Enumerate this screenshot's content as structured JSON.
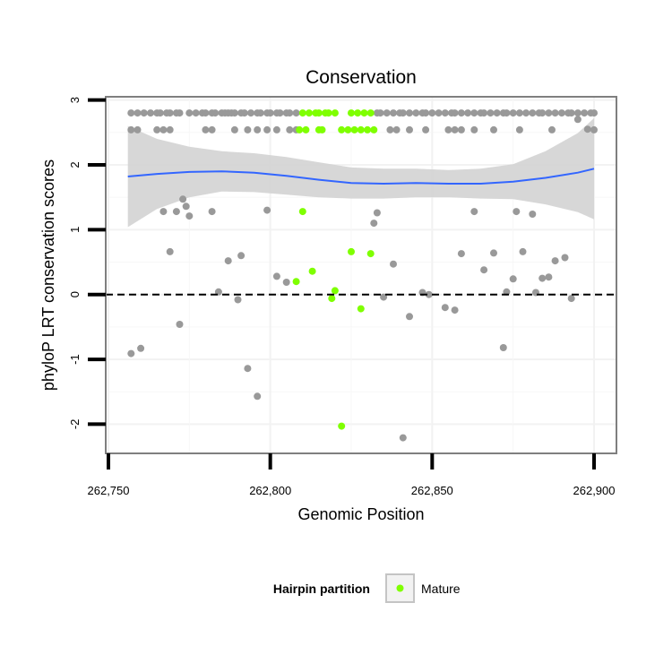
{
  "chart_data": {
    "type": "scatter",
    "title": "Conservation",
    "xlabel": "Genomic Position",
    "ylabel": "phyloP LRT conservation scores",
    "xlim": [
      262750,
      262900
    ],
    "ylim": [
      -2.45,
      3.05
    ],
    "x_ticks": [
      262750,
      262800,
      262850,
      262900
    ],
    "x_tick_labels": [
      "262,750",
      "262,800",
      "262,850",
      "262,900"
    ],
    "y_ticks": [
      -2,
      -1,
      0,
      1,
      2,
      3
    ],
    "y_tick_labels": [
      "-2",
      "-1",
      "0",
      "1",
      "2",
      "3"
    ],
    "reference_line": {
      "y": 0,
      "style": "dashed",
      "color": "#000000"
    },
    "grid": true,
    "legend": {
      "title": "Hairpin partition",
      "position": "bottom",
      "entries": [
        "Mature"
      ]
    },
    "colors": {
      "other": "#999999",
      "mature": "#7fff00",
      "smooth": "#3366ff",
      "band": "#d3d3d3",
      "panel_border": "#7f7f7f"
    },
    "series": [
      {
        "role": "other",
        "color": "#999999",
        "x": [
          262757,
          262759,
          262761,
          262763,
          262765,
          262766,
          262768,
          262769,
          262771,
          262772,
          262775,
          262777,
          262779,
          262780,
          262782,
          262783,
          262785,
          262786,
          262787,
          262788,
          262789,
          262791,
          262792,
          262794,
          262796,
          262797,
          262799,
          262800,
          262802,
          262803,
          262805,
          262806,
          262808,
          262833,
          262834,
          262836,
          262838,
          262840,
          262841,
          262843,
          262845,
          262847,
          262848,
          262850,
          262852,
          262854,
          262856,
          262857,
          262859,
          262861,
          262863,
          262865,
          262866,
          262868,
          262870,
          262872,
          262873,
          262875,
          262877,
          262879,
          262881,
          262883,
          262884,
          262886,
          262888,
          262890,
          262892,
          262893,
          262895,
          262897,
          262899,
          262900,
          262757,
          262759,
          262765,
          262767,
          262769,
          262780,
          262782,
          262789,
          262793,
          262796,
          262799,
          262802,
          262806,
          262808,
          262837,
          262839,
          262843,
          262848,
          262855,
          262857,
          262859,
          262863,
          262869,
          262877,
          262887,
          262900,
          262757,
          262760,
          262767,
          262769,
          262771,
          262772,
          262773,
          262774,
          262775,
          262782,
          262784,
          262787,
          262790,
          262791,
          262793,
          262796,
          262799,
          262802,
          262805,
          262832,
          262833,
          262835,
          262838,
          262841,
          262843,
          262847,
          262849,
          262854,
          262857,
          262859,
          262863,
          262866,
          262869,
          262872,
          262873,
          262875,
          262876,
          262878,
          262881,
          262882,
          262884,
          262886,
          262888,
          262891,
          262893,
          262895,
          262898
        ],
        "y": [
          2.8,
          2.8,
          2.8,
          2.8,
          2.8,
          2.8,
          2.8,
          2.8,
          2.8,
          2.8,
          2.8,
          2.8,
          2.8,
          2.8,
          2.8,
          2.8,
          2.8,
          2.8,
          2.8,
          2.8,
          2.8,
          2.8,
          2.8,
          2.8,
          2.8,
          2.8,
          2.8,
          2.8,
          2.8,
          2.8,
          2.8,
          2.8,
          2.8,
          2.8,
          2.8,
          2.8,
          2.8,
          2.8,
          2.8,
          2.8,
          2.8,
          2.8,
          2.8,
          2.8,
          2.8,
          2.8,
          2.8,
          2.8,
          2.8,
          2.8,
          2.8,
          2.8,
          2.8,
          2.8,
          2.8,
          2.8,
          2.8,
          2.8,
          2.8,
          2.8,
          2.8,
          2.8,
          2.8,
          2.8,
          2.8,
          2.8,
          2.8,
          2.8,
          2.8,
          2.8,
          2.8,
          2.8,
          2.54,
          2.54,
          2.54,
          2.54,
          2.54,
          2.54,
          2.54,
          2.54,
          2.54,
          2.54,
          2.54,
          2.54,
          2.54,
          2.54,
          2.54,
          2.54,
          2.54,
          2.54,
          2.54,
          2.54,
          2.54,
          2.54,
          2.54,
          2.54,
          2.54,
          2.54,
          -0.91,
          -0.83,
          1.28,
          0.66,
          1.28,
          -0.46,
          1.47,
          1.36,
          1.21,
          1.28,
          0.04,
          0.52,
          -0.08,
          0.6,
          -1.14,
          -1.57,
          1.3,
          0.28,
          0.19,
          1.1,
          1.26,
          -0.04,
          0.47,
          -2.21,
          -0.34,
          0.03,
          0.0,
          -0.2,
          -0.24,
          0.63,
          1.28,
          0.38,
          0.64,
          -0.82,
          0.04,
          0.24,
          1.28,
          0.66,
          1.24,
          0.03,
          0.25,
          0.27,
          0.52,
          0.57,
          -0.06,
          2.7,
          2.55
        ]
      },
      {
        "role": "mature",
        "name": "Mature",
        "color": "#7fff00",
        "x": [
          262810,
          262812,
          262814,
          262815,
          262817,
          262818,
          262820,
          262825,
          262827,
          262829,
          262831,
          262809,
          262811,
          262815,
          262816,
          262822,
          262824,
          262826,
          262828,
          262830,
          262832,
          262808,
          262810,
          262813,
          262819,
          262820,
          262822,
          262825,
          262828,
          262831
        ],
        "y": [
          2.8,
          2.8,
          2.8,
          2.8,
          2.8,
          2.8,
          2.8,
          2.8,
          2.8,
          2.8,
          2.8,
          2.54,
          2.54,
          2.54,
          2.54,
          2.54,
          2.54,
          2.54,
          2.54,
          2.54,
          2.54,
          0.2,
          1.28,
          0.36,
          -0.06,
          0.06,
          -2.03,
          0.66,
          -0.22,
          0.63
        ]
      }
    ],
    "smooth": {
      "x": [
        262756,
        262765,
        262775,
        262785,
        262795,
        262805,
        262815,
        262825,
        262835,
        262845,
        262855,
        262865,
        262875,
        262885,
        262895,
        262900
      ],
      "y": [
        1.82,
        1.86,
        1.89,
        1.9,
        1.88,
        1.83,
        1.77,
        1.72,
        1.71,
        1.72,
        1.71,
        1.71,
        1.74,
        1.8,
        1.88,
        1.94
      ],
      "lower": [
        1.04,
        1.32,
        1.5,
        1.59,
        1.58,
        1.54,
        1.5,
        1.48,
        1.48,
        1.5,
        1.5,
        1.48,
        1.47,
        1.39,
        1.27,
        1.16
      ],
      "upper": [
        2.6,
        2.4,
        2.28,
        2.21,
        2.18,
        2.12,
        2.04,
        1.96,
        1.94,
        1.94,
        1.92,
        1.94,
        2.01,
        2.21,
        2.49,
        2.72
      ]
    }
  }
}
